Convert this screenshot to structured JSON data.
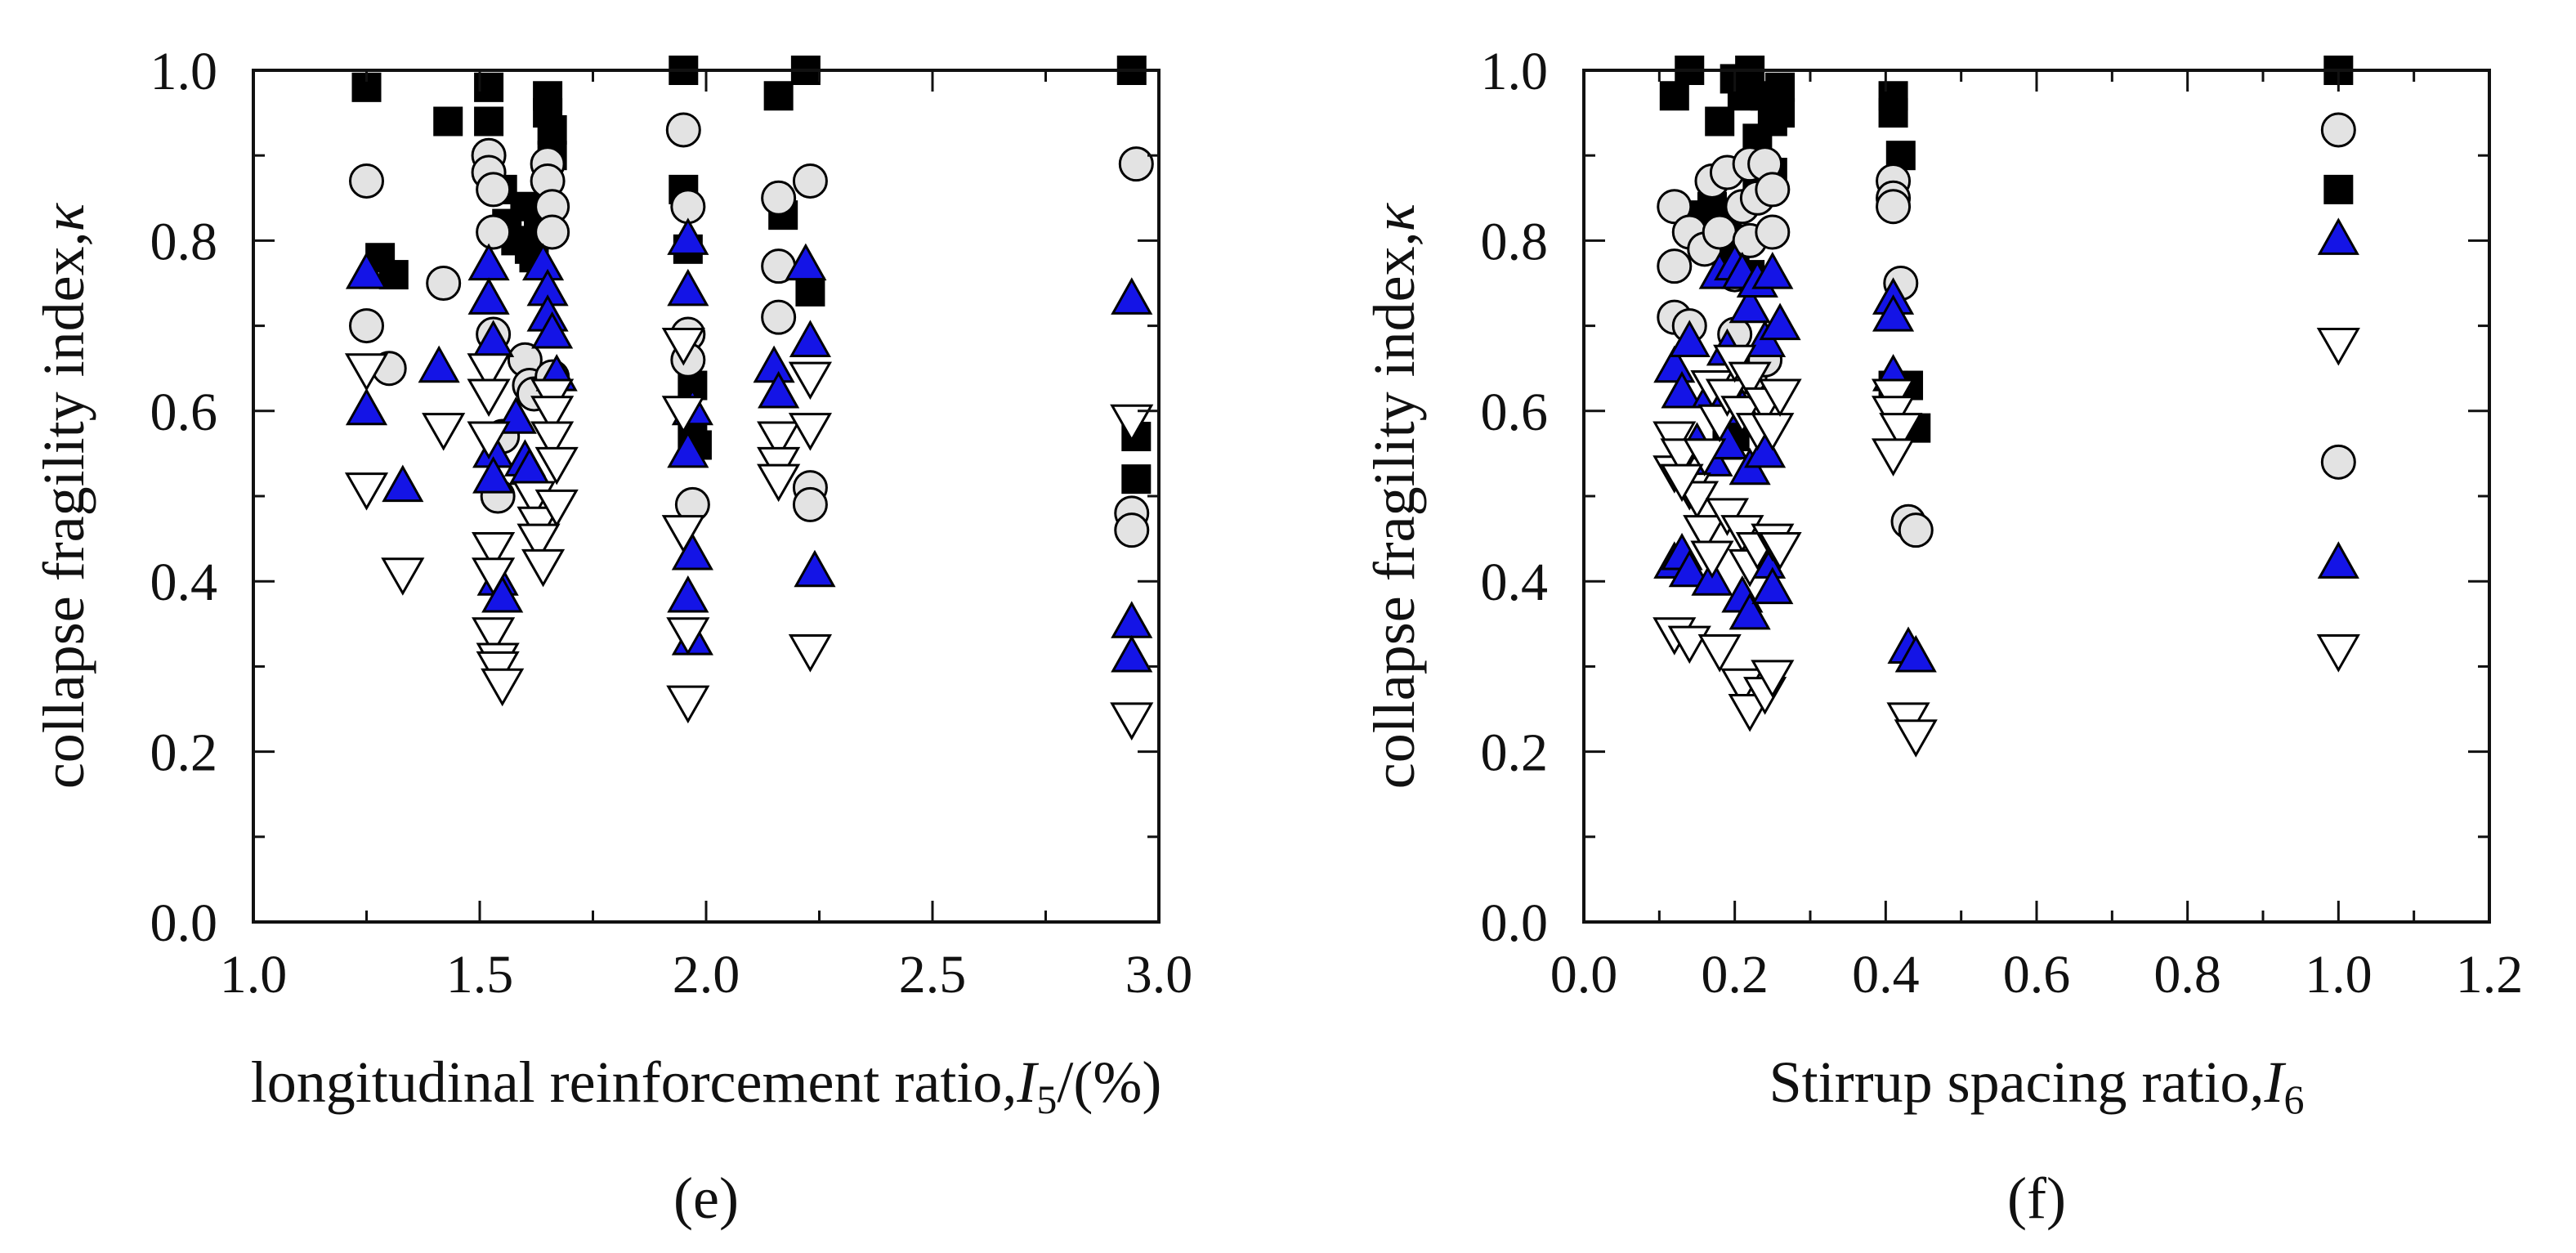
{
  "chart_data": [
    {
      "type": "scatter",
      "panel_label": "(e)",
      "xlabel": "longitudinal reinforcement ratio,",
      "xlabel_var": "I",
      "xlabel_sub": "5",
      "xlabel_suffix": "/(%)",
      "ylabel": "collapse fragility index,",
      "ylabel_var": "κ",
      "xlim": [
        1.0,
        3.0
      ],
      "ylim": [
        0.0,
        1.0
      ],
      "xticks": [
        "1.0",
        "1.5",
        "2.0",
        "2.5",
        "3.0"
      ],
      "yticks": [
        "0.0",
        "0.2",
        "0.4",
        "0.6",
        "0.8",
        "1.0"
      ],
      "grid": false,
      "legend": "none",
      "series": [
        {
          "name": "filled square",
          "marker": "square",
          "color": "#000000",
          "x": [
            1.25,
            1.28,
            1.31,
            1.43,
            1.52,
            1.52,
            1.52,
            1.55,
            1.56,
            1.58,
            1.6,
            1.61,
            1.62,
            1.63,
            1.65,
            1.65,
            1.66,
            1.66,
            1.95,
            1.95,
            1.96,
            1.97,
            1.97,
            1.98,
            2.16,
            2.17,
            2.22,
            2.23,
            2.94,
            2.95,
            2.95
          ],
          "y": [
            0.98,
            0.78,
            0.76,
            0.94,
            0.98,
            0.94,
            0.89,
            0.86,
            0.82,
            0.8,
            0.84,
            0.79,
            0.78,
            0.81,
            0.97,
            0.95,
            0.93,
            0.9,
            1.0,
            0.86,
            0.79,
            0.63,
            0.57,
            0.56,
            0.97,
            0.83,
            1.0,
            0.74,
            1.0,
            0.57,
            0.52
          ]
        },
        {
          "name": "grey circle",
          "marker": "circle",
          "color": "#e3e3e3",
          "x": [
            1.25,
            1.25,
            1.3,
            1.42,
            1.52,
            1.52,
            1.53,
            1.53,
            1.53,
            1.54,
            1.55,
            1.6,
            1.61,
            1.62,
            1.65,
            1.65,
            1.66,
            1.66,
            1.66,
            1.95,
            1.96,
            1.96,
            1.96,
            1.97,
            2.16,
            2.16,
            2.16,
            2.23,
            2.23,
            2.23,
            2.95,
            2.94,
            2.94
          ],
          "y": [
            0.87,
            0.7,
            0.65,
            0.75,
            0.9,
            0.88,
            0.86,
            0.81,
            0.69,
            0.5,
            0.57,
            0.66,
            0.63,
            0.62,
            0.89,
            0.87,
            0.84,
            0.81,
            0.64,
            0.93,
            0.84,
            0.69,
            0.66,
            0.49,
            0.85,
            0.77,
            0.71,
            0.87,
            0.51,
            0.49,
            0.89,
            0.48,
            0.46
          ]
        },
        {
          "name": "blue triangle",
          "marker": "triangle",
          "color": "#1414e6",
          "x": [
            1.25,
            1.25,
            1.33,
            1.41,
            1.52,
            1.52,
            1.53,
            1.53,
            1.53,
            1.54,
            1.55,
            1.58,
            1.6,
            1.61,
            1.64,
            1.65,
            1.65,
            1.66,
            1.67,
            1.96,
            1.96,
            1.97,
            1.96,
            1.97,
            1.96,
            1.97,
            2.15,
            2.16,
            2.22,
            2.23,
            2.24,
            2.94,
            2.94,
            2.94
          ],
          "y": [
            0.76,
            0.6,
            0.51,
            0.65,
            0.77,
            0.73,
            0.68,
            0.55,
            0.52,
            0.4,
            0.38,
            0.59,
            0.54,
            0.53,
            0.77,
            0.74,
            0.71,
            0.69,
            0.64,
            0.8,
            0.74,
            0.6,
            0.55,
            0.43,
            0.38,
            0.33,
            0.65,
            0.62,
            0.77,
            0.68,
            0.41,
            0.73,
            0.35,
            0.31
          ]
        },
        {
          "name": "open triangle",
          "marker": "triangle-down",
          "color": "#ffffff",
          "x": [
            1.25,
            1.25,
            1.33,
            1.42,
            1.52,
            1.52,
            1.52,
            1.53,
            1.53,
            1.53,
            1.54,
            1.54,
            1.55,
            1.62,
            1.63,
            1.63,
            1.64,
            1.66,
            1.66,
            1.66,
            1.67,
            1.67,
            1.95,
            1.95,
            1.95,
            1.96,
            1.96,
            2.16,
            2.16,
            2.16,
            2.23,
            2.23,
            2.23,
            2.94,
            2.94
          ],
          "y": [
            0.65,
            0.51,
            0.41,
            0.58,
            0.65,
            0.62,
            0.57,
            0.44,
            0.41,
            0.34,
            0.31,
            0.3,
            0.28,
            0.5,
            0.47,
            0.45,
            0.42,
            0.62,
            0.6,
            0.57,
            0.54,
            0.49,
            0.68,
            0.6,
            0.46,
            0.34,
            0.26,
            0.57,
            0.54,
            0.52,
            0.64,
            0.58,
            0.32,
            0.59,
            0.24
          ]
        }
      ]
    },
    {
      "type": "scatter",
      "panel_label": "(f)",
      "xlabel": "Stirrup spacing ratio,",
      "xlabel_var": "I",
      "xlabel_sub": "6",
      "ylabel": "collapse fragility index,",
      "ylabel_var": "κ",
      "xlim": [
        0.0,
        1.2
      ],
      "ylim": [
        0.0,
        1.0
      ],
      "xticks": [
        "0.0",
        "0.2",
        "0.4",
        "0.6",
        "0.8",
        "1.0",
        "1.2"
      ],
      "yticks": [
        "0.0",
        "0.2",
        "0.4",
        "0.6",
        "0.8",
        "1.0"
      ],
      "grid": false,
      "legend": "none",
      "series": [
        {
          "name": "filled square",
          "marker": "square",
          "color": "#000000",
          "x": [
            0.12,
            0.14,
            0.17,
            0.18,
            0.2,
            0.21,
            0.22,
            0.23,
            0.24,
            0.25,
            0.26,
            0.26,
            0.15,
            0.17,
            0.19,
            0.2,
            0.22,
            0.23,
            0.25,
            0.19,
            0.2,
            0.41,
            0.41,
            0.42,
            0.41,
            0.43,
            0.44,
            1.0,
            1.0
          ],
          "y": [
            0.97,
            1.0,
            0.84,
            0.94,
            0.99,
            0.97,
            1.0,
            0.92,
            0.97,
            0.94,
            0.95,
            0.98,
            0.83,
            0.8,
            0.82,
            0.78,
            0.76,
            0.87,
            0.88,
            0.56,
            0.57,
            0.97,
            0.95,
            0.9,
            0.63,
            0.63,
            0.58,
            1.0,
            0.86
          ]
        },
        {
          "name": "grey circle",
          "marker": "circle",
          "color": "#e3e3e3",
          "x": [
            0.12,
            0.12,
            0.12,
            0.14,
            0.16,
            0.17,
            0.18,
            0.19,
            0.2,
            0.21,
            0.22,
            0.22,
            0.23,
            0.24,
            0.25,
            0.25,
            0.2,
            0.22,
            0.24,
            0.14,
            0.41,
            0.41,
            0.41,
            0.42,
            0.43,
            0.44,
            1.0,
            1.0
          ],
          "y": [
            0.84,
            0.77,
            0.71,
            0.81,
            0.79,
            0.87,
            0.81,
            0.88,
            0.76,
            0.84,
            0.89,
            0.8,
            0.85,
            0.89,
            0.81,
            0.86,
            0.69,
            0.64,
            0.66,
            0.7,
            0.87,
            0.85,
            0.84,
            0.75,
            0.47,
            0.46,
            0.93,
            0.54
          ]
        },
        {
          "name": "blue triangle",
          "marker": "triangle",
          "color": "#1414e6",
          "x": [
            0.12,
            0.13,
            0.14,
            0.12,
            0.15,
            0.17,
            0.18,
            0.19,
            0.2,
            0.21,
            0.22,
            0.23,
            0.24,
            0.25,
            0.26,
            0.17,
            0.19,
            0.21,
            0.22,
            0.24,
            0.13,
            0.14,
            0.17,
            0.21,
            0.22,
            0.24,
            0.25,
            0.41,
            0.41,
            0.41,
            0.43,
            0.44,
            1.0,
            1.0
          ],
          "y": [
            0.65,
            0.62,
            0.68,
            0.42,
            0.56,
            0.62,
            0.76,
            0.67,
            0.77,
            0.76,
            0.72,
            0.75,
            0.68,
            0.76,
            0.7,
            0.54,
            0.56,
            0.6,
            0.53,
            0.55,
            0.43,
            0.41,
            0.4,
            0.38,
            0.36,
            0.42,
            0.39,
            0.73,
            0.71,
            0.64,
            0.32,
            0.31,
            0.8,
            0.42
          ]
        },
        {
          "name": "open triangle",
          "marker": "triangle-down",
          "color": "#ffffff",
          "x": [
            0.12,
            0.12,
            0.13,
            0.14,
            0.15,
            0.16,
            0.17,
            0.18,
            0.19,
            0.2,
            0.21,
            0.22,
            0.23,
            0.24,
            0.25,
            0.26,
            0.12,
            0.14,
            0.16,
            0.17,
            0.19,
            0.21,
            0.22,
            0.23,
            0.25,
            0.26,
            0.13,
            0.18,
            0.21,
            0.22,
            0.24,
            0.25,
            0.41,
            0.41,
            0.42,
            0.41,
            0.43,
            0.44,
            1.0,
            1.0
          ],
          "y": [
            0.57,
            0.53,
            0.55,
            0.51,
            0.5,
            0.55,
            0.63,
            0.59,
            0.62,
            0.66,
            0.6,
            0.64,
            0.58,
            0.61,
            0.58,
            0.62,
            0.34,
            0.33,
            0.46,
            0.43,
            0.48,
            0.46,
            0.42,
            0.44,
            0.45,
            0.44,
            0.52,
            0.32,
            0.28,
            0.25,
            0.27,
            0.29,
            0.62,
            0.6,
            0.58,
            0.55,
            0.24,
            0.22,
            0.68,
            0.32
          ]
        }
      ]
    }
  ]
}
